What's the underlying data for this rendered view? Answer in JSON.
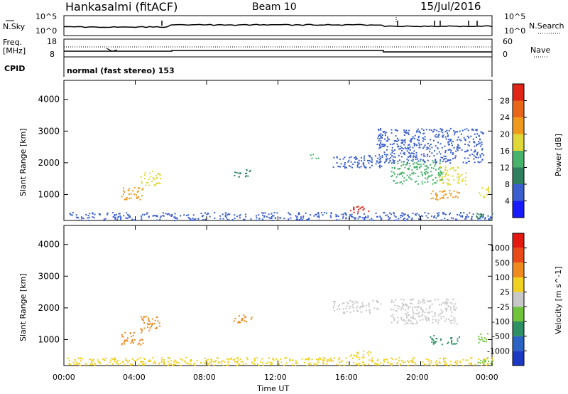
{
  "header": {
    "title": "Hankasalmi (fitACF)",
    "beam": "Beam 10",
    "date": "15/Jul/2016"
  },
  "sky_panel": {
    "left_label": "N.Sky",
    "left_ticks": [
      "10^5",
      "10^0"
    ],
    "right_ticks": [
      "10^5",
      "10^0"
    ],
    "right_label": "N.Search"
  },
  "freq_panel": {
    "left_label_1": "Freq.",
    "left_label_2": "[MHz]",
    "left_ticks": [
      "18",
      "8"
    ],
    "right_ticks": [
      "60",
      "0"
    ],
    "right_label": "Nave"
  },
  "cpid": {
    "label": "CPID",
    "value": "normal (fast stereo) 153"
  },
  "x_axis": {
    "ticks": [
      "00:00",
      "04:00",
      "08:00",
      "12:00",
      "16:00",
      "20:00",
      "00:00"
    ],
    "label": "Time UT"
  },
  "chart_data": [
    {
      "type": "heatmap",
      "panel": "power",
      "xlabel": "Time UT",
      "ylabel": "Slant Range [km]",
      "x_ticks": [
        "00:00",
        "04:00",
        "08:00",
        "12:00",
        "16:00",
        "20:00",
        "00:00"
      ],
      "y_ticks": [
        1000,
        2000,
        3000,
        4000
      ],
      "ylim": [
        180,
        4600
      ],
      "xlim_hours": [
        0,
        24
      ],
      "colorbar": {
        "label": "Power [dB]",
        "ticks": [
          "4",
          "8",
          "12",
          "16",
          "20",
          "24",
          "28"
        ],
        "colors": [
          "#1a1aff",
          "#3a5fcf",
          "#2f7f5f",
          "#47b36b",
          "#e0d838",
          "#ef9a1e",
          "#e8661a",
          "#e02418"
        ]
      },
      "regions": [
        {
          "t0": 0.2,
          "t1": 24.0,
          "r0": 200,
          "r1": 450,
          "level": 1
        },
        {
          "t0": 3.2,
          "t1": 4.4,
          "r0": 850,
          "r1": 1250,
          "level": 5
        },
        {
          "t0": 4.2,
          "t1": 5.4,
          "r0": 1300,
          "r1": 1750,
          "level": 4
        },
        {
          "t0": 9.5,
          "t1": 10.5,
          "r0": 1550,
          "r1": 1800,
          "level": 2
        },
        {
          "t0": 13.8,
          "t1": 14.3,
          "r0": 2150,
          "r1": 2300,
          "level": 3
        },
        {
          "t0": 15.0,
          "t1": 17.8,
          "r0": 1850,
          "r1": 2250,
          "level": 1
        },
        {
          "t0": 16.0,
          "t1": 17.2,
          "r0": 450,
          "r1": 650,
          "level": 7
        },
        {
          "t0": 18.3,
          "t1": 21.2,
          "r0": 1350,
          "r1": 2100,
          "level": 3
        },
        {
          "t0": 21.0,
          "t1": 22.5,
          "r0": 1300,
          "r1": 1900,
          "level": 4
        },
        {
          "t0": 20.5,
          "t1": 22.2,
          "r0": 850,
          "r1": 1150,
          "level": 5
        },
        {
          "t0": 23.2,
          "t1": 23.8,
          "r0": 900,
          "r1": 1250,
          "level": 4
        },
        {
          "t0": 17.5,
          "t1": 23.5,
          "r0": 2000,
          "r1": 3100,
          "level": 1
        },
        {
          "t0": 23.0,
          "t1": 24.0,
          "r0": 220,
          "r1": 450,
          "level": 2
        }
      ]
    },
    {
      "type": "heatmap",
      "panel": "velocity",
      "xlabel": "Time UT",
      "ylabel": "Slant Range [km]",
      "x_ticks": [
        "00:00",
        "04:00",
        "08:00",
        "12:00",
        "16:00",
        "20:00",
        "00:00"
      ],
      "y_ticks": [
        1000,
        2000,
        3000,
        4000
      ],
      "ylim": [
        180,
        4600
      ],
      "xlim_hours": [
        0,
        24
      ],
      "colorbar": {
        "label": "Velocity [m s^-1]",
        "ticks": [
          "1000",
          "500",
          "100",
          "25",
          "-25",
          "-100",
          "-500",
          "-1000"
        ],
        "colors": [
          "#1c39c4",
          "#2d62c5",
          "#2e8f62",
          "#6fc43c",
          "#c8c8c8",
          "#f0d020",
          "#ef8a1e",
          "#e84a18",
          "#e41a12"
        ]
      },
      "regions": [
        {
          "t0": 0.2,
          "t1": 24.0,
          "r0": 200,
          "r1": 450,
          "level": 5
        },
        {
          "t0": 3.2,
          "t1": 4.4,
          "r0": 850,
          "r1": 1250,
          "level": 6
        },
        {
          "t0": 4.2,
          "t1": 5.4,
          "r0": 1300,
          "r1": 1750,
          "level": 6
        },
        {
          "t0": 9.5,
          "t1": 10.5,
          "r0": 1550,
          "r1": 1800,
          "level": 6
        },
        {
          "t0": 15.0,
          "t1": 17.8,
          "r0": 1850,
          "r1": 2250,
          "level": 4
        },
        {
          "t0": 16.0,
          "t1": 17.2,
          "r0": 450,
          "r1": 650,
          "level": 5
        },
        {
          "t0": 18.3,
          "t1": 22.0,
          "r0": 1500,
          "r1": 2300,
          "level": 4
        },
        {
          "t0": 20.5,
          "t1": 22.2,
          "r0": 850,
          "r1": 1150,
          "level": 2
        },
        {
          "t0": 23.2,
          "t1": 23.8,
          "r0": 900,
          "r1": 1250,
          "level": 3
        },
        {
          "t0": 23.0,
          "t1": 24.0,
          "r0": 220,
          "r1": 450,
          "level": 3
        }
      ]
    }
  ]
}
